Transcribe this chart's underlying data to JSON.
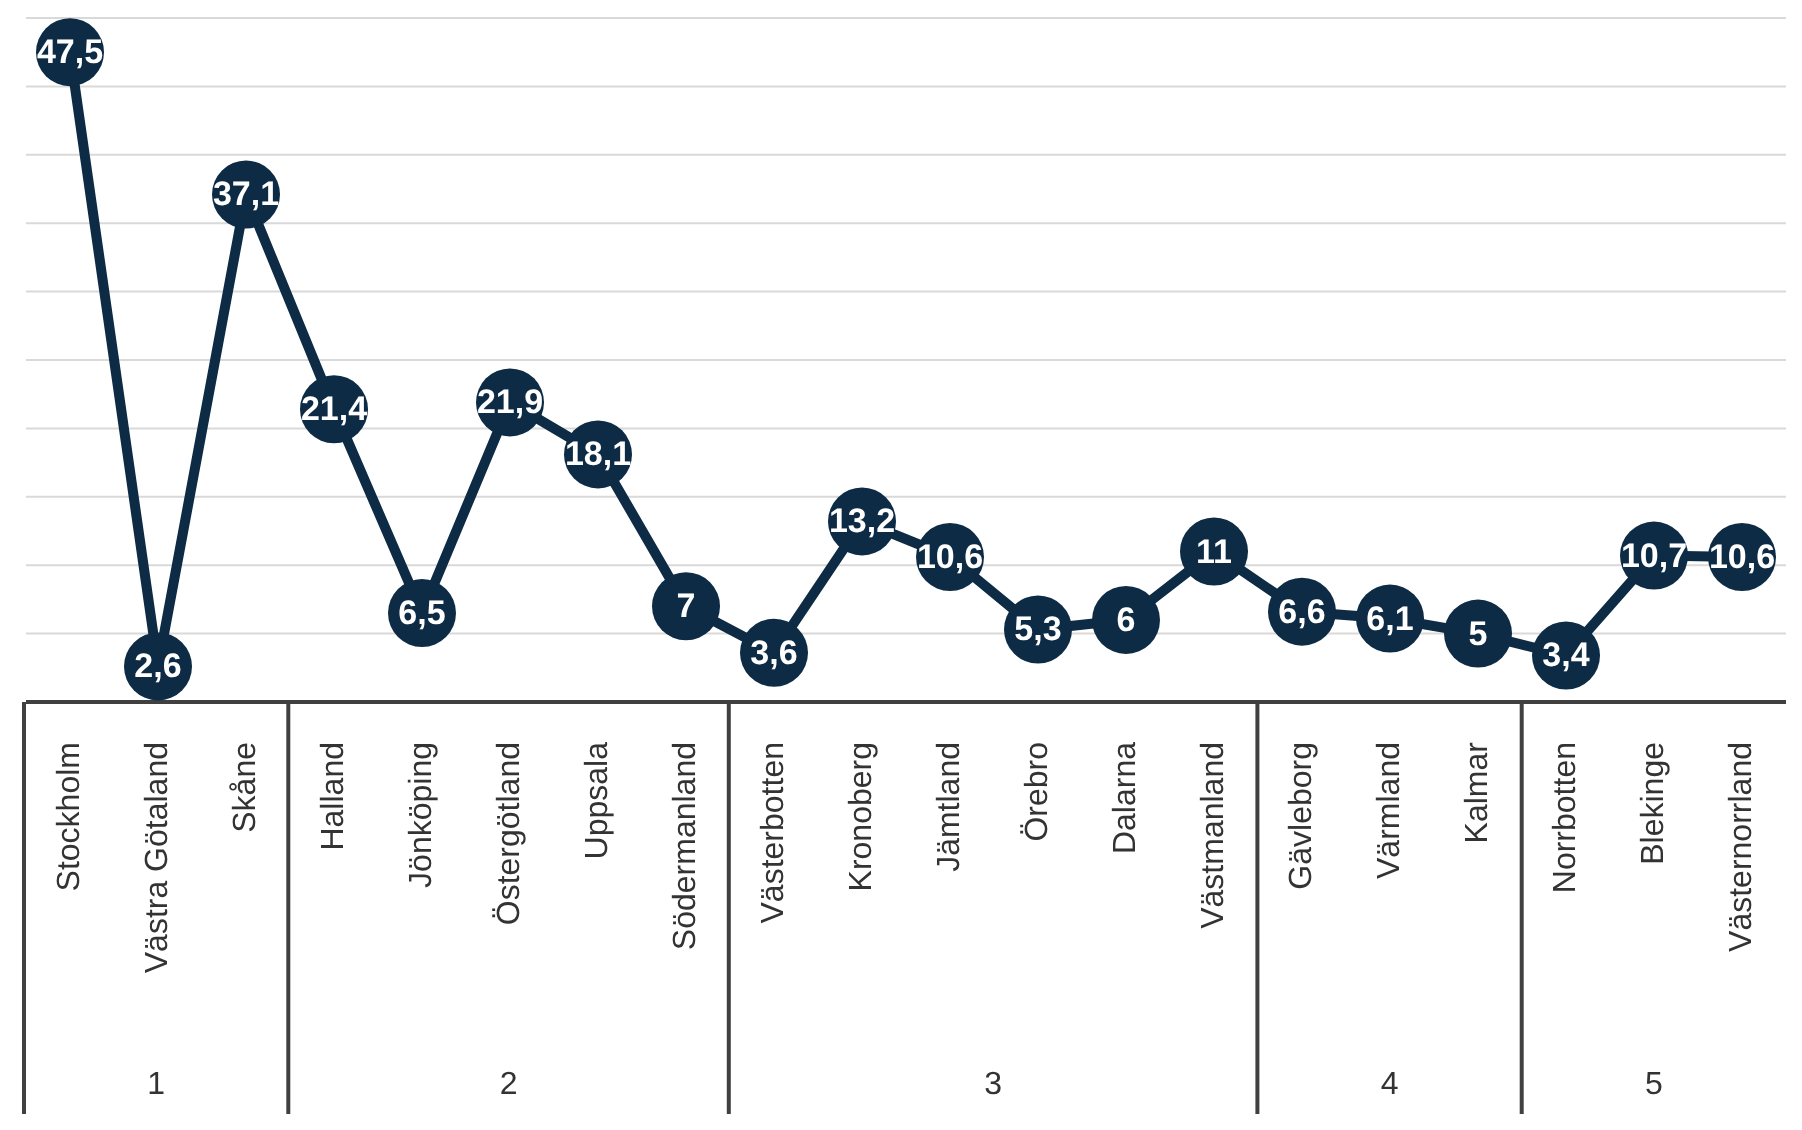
{
  "chart_data": {
    "type": "line",
    "categories": [
      "Stockholm",
      "Västra Götaland",
      "Skåne",
      "Halland",
      "Jönköping",
      "Östergötland",
      "Uppsala",
      "Södermanland",
      "Västerbotten",
      "Kronoberg",
      "Jämtland",
      "Örebro",
      "Dalarna",
      "Västmanland",
      "Gävleborg",
      "Värmland",
      "Kalmar",
      "Norrbotten",
      "Blekinge",
      "Västernorrland"
    ],
    "series": [
      {
        "color": "#0d2b45",
        "values": [
          47.5,
          2.6,
          37.1,
          21.4,
          6.5,
          21.9,
          18.1,
          7,
          3.6,
          13.2,
          10.6,
          5.3,
          6,
          11,
          6.6,
          6.1,
          5,
          3.4,
          10.7,
          10.6
        ],
        "value_labels": [
          "47,5",
          "2,6",
          "37,1",
          "21,4",
          "6,5",
          "21,9",
          "18,1",
          "7",
          "3,6",
          "13,2",
          "10,6",
          "5,3",
          "6",
          "11",
          "6,6",
          "6,1",
          "5",
          "3,4",
          "10,7",
          "10,6"
        ]
      }
    ],
    "tick_labels": "x",
    "grid": "y",
    "marker": "circle",
    "line_style": "solid",
    "annotations": [
      "1",
      "2",
      "3",
      "4",
      "5"
    ]
  }
}
